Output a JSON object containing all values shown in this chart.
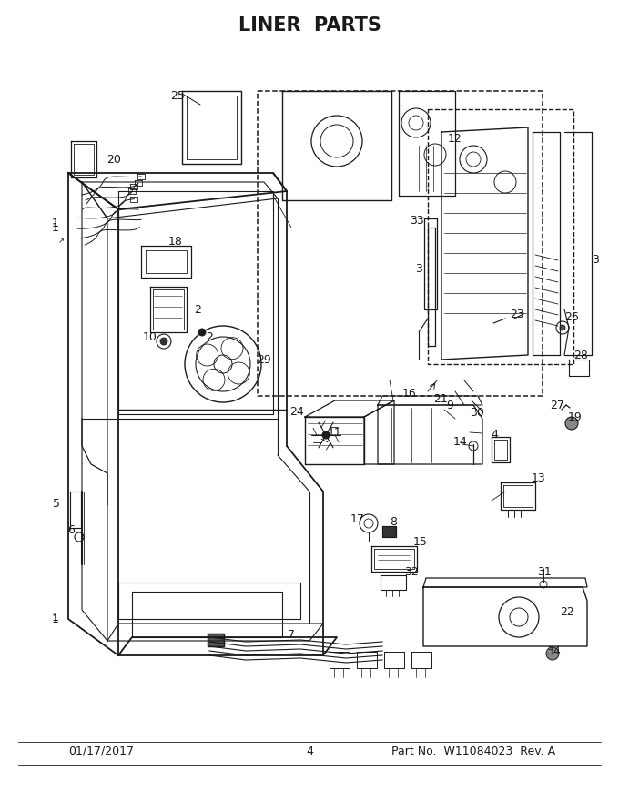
{
  "title": "LINER  PARTS",
  "footer_left": "01/17/2017",
  "footer_center": "4",
  "footer_right": "Part No.  W11084023  Rev. A",
  "bg_color": "#ffffff",
  "line_color": "#1a1a1a",
  "title_fontsize": 15,
  "footer_fontsize": 9,
  "label_fontsize": 9
}
